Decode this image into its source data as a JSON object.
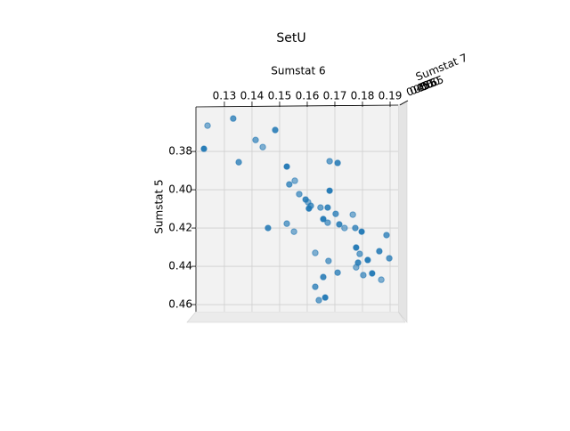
{
  "chart_data": {
    "type": "scatter",
    "title": "SetU",
    "xlabel": "Sumstat 6",
    "ylabel": "Sumstat 5",
    "zlabel": "Sumstat 7",
    "xlim": [
      0.1197,
      0.1929
    ],
    "ylim": [
      0.3567,
      0.4637
    ],
    "xticks": [
      0.13,
      0.14,
      0.15,
      0.16,
      0.17,
      0.18,
      0.19
    ],
    "yticks": [
      {
        "value": 0.38,
        "label": "0.38"
      },
      {
        "value": 0.4,
        "label": "0.40"
      },
      {
        "value": 0.42,
        "label": "0.42"
      },
      {
        "value": 0.44,
        "label": "0.44"
      },
      {
        "value": 0.46,
        "label": "0.46"
      }
    ],
    "zticks": [
      {
        "value": 0.45,
        "label": "0.45"
      },
      {
        "value": 0.5,
        "label": "0.50"
      },
      {
        "value": 0.55,
        "label": "0.55"
      },
      {
        "value": 0.6,
        "label": "0.60"
      },
      {
        "value": 0.65,
        "label": "0.65"
      }
    ],
    "grid": true,
    "color": "#1f77b4",
    "x": [
      0.1239,
      0.1332,
      0.1226,
      0.1413,
      0.1484,
      0.1439,
      0.1352,
      0.1526,
      0.1681,
      0.171,
      0.1555,
      0.1535,
      0.1681,
      0.1571,
      0.1594,
      0.1603,
      0.1613,
      0.1606,
      0.1648,
      0.1674,
      0.1765,
      0.1703,
      0.1658,
      0.1674,
      0.1716,
      0.1735,
      0.1774,
      0.1797,
      0.1526,
      0.1458,
      0.1552,
      0.1887,
      0.1777,
      0.179,
      0.1861,
      0.1629,
      0.1897,
      0.1819,
      0.1677,
      0.1784,
      0.1777,
      0.171,
      0.1835,
      0.1803,
      0.1658,
      0.1868,
      0.1629,
      0.1665,
      0.1642
    ],
    "values": [
      0.3665,
      0.3628,
      0.3786,
      0.374,
      0.3688,
      0.3777,
      0.3856,
      0.3879,
      0.3851,
      0.386,
      0.3953,
      0.3972,
      0.4005,
      0.4023,
      0.4051,
      0.4065,
      0.4084,
      0.4098,
      0.4093,
      0.4093,
      0.413,
      0.4126,
      0.4153,
      0.4172,
      0.4181,
      0.42,
      0.42,
      0.4219,
      0.4177,
      0.42,
      0.4219,
      0.4237,
      0.4302,
      0.4335,
      0.4321,
      0.433,
      0.4358,
      0.4367,
      0.4372,
      0.4381,
      0.4405,
      0.4433,
      0.4437,
      0.4446,
      0.4456,
      0.447,
      0.4507,
      0.4563,
      0.4577
    ]
  }
}
